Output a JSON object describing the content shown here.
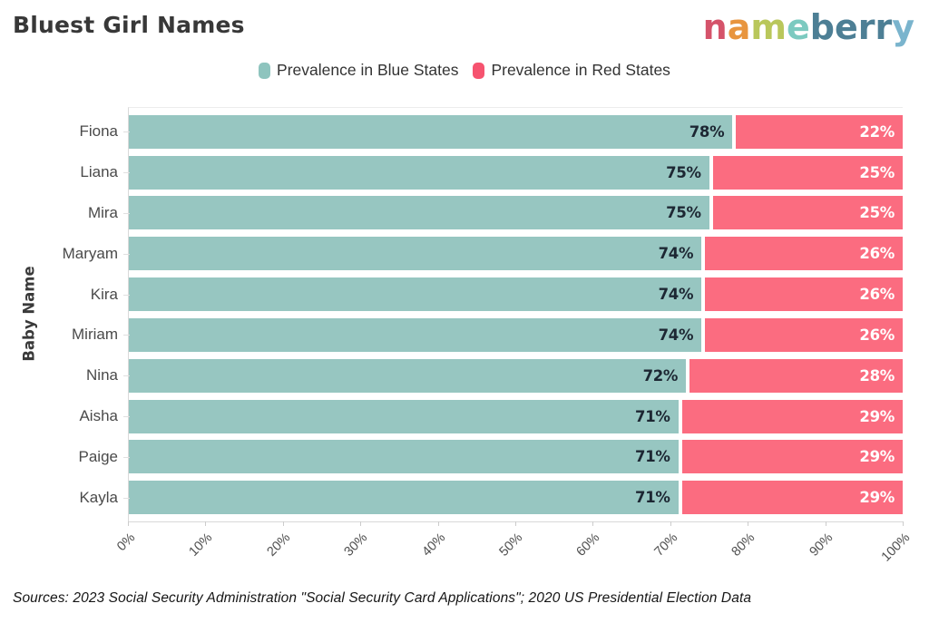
{
  "title": "Bluest Girl Names",
  "logo": {
    "name": "nameberry",
    "letters": [
      {
        "ch": "n",
        "color": "#D5536A"
      },
      {
        "ch": "a",
        "color": "#E8953F"
      },
      {
        "ch": "m",
        "color": "#B9C75B"
      },
      {
        "ch": "e",
        "color": "#7CCAC0"
      },
      {
        "ch": "b",
        "color": "#4D7F95"
      },
      {
        "ch": "e",
        "color": "#4D7F95"
      },
      {
        "ch": "r",
        "color": "#4D7F95"
      },
      {
        "ch": "r",
        "color": "#4D7F95"
      },
      {
        "ch": "y",
        "color": "#7AB4CD"
      }
    ]
  },
  "legend": [
    {
      "label": "Prevalence in Blue States",
      "color": "#8EC4BE"
    },
    {
      "label": "Prevalence in Red States",
      "color": "#F6536F"
    }
  ],
  "chart_data": {
    "type": "bar",
    "orientation": "horizontal",
    "stacked": true,
    "title": "Bluest Girl Names",
    "categories": [
      "Fiona",
      "Liana",
      "Mira",
      "Maryam",
      "Kira",
      "Miriam",
      "Nina",
      "Aisha",
      "Paige",
      "Kayla"
    ],
    "series": [
      {
        "name": "Prevalence in Blue States",
        "color": "#97C6C1",
        "values": [
          78,
          75,
          75,
          74,
          74,
          74,
          72,
          71,
          71,
          71
        ]
      },
      {
        "name": "Prevalence in Red States",
        "color": "#FB6C80",
        "values": [
          22,
          25,
          25,
          26,
          26,
          26,
          28,
          29,
          29,
          29
        ]
      }
    ],
    "ylabel": "Baby Name",
    "xlabel": "",
    "xlim": [
      0,
      100
    ],
    "x_ticks": [
      "0%",
      "10%",
      "20%",
      "30%",
      "40%",
      "50%",
      "60%",
      "70%",
      "80%",
      "90%",
      "100%"
    ],
    "bar_label_format": "percent",
    "legend_position": "top",
    "grid": false
  },
  "sources": "Sources: 2023 Social Security Administration \"Social Security Card Applications\"; 2020 US Presidential Election Data"
}
